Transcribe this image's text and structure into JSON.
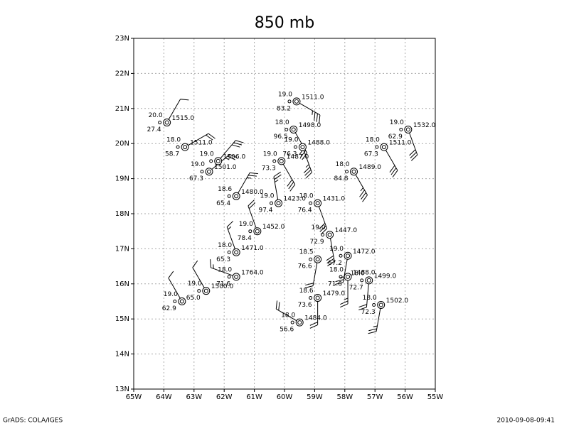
{
  "title": "850 mb",
  "map": {
    "xlim": [
      -65,
      -55
    ],
    "ylim": [
      13,
      23
    ],
    "grid": true,
    "xticks": [
      {
        "value": -65,
        "label": "65W"
      },
      {
        "value": -64,
        "label": "64W"
      },
      {
        "value": -63,
        "label": "63W"
      },
      {
        "value": -62,
        "label": "62W"
      },
      {
        "value": -61,
        "label": "61W"
      },
      {
        "value": -60,
        "label": "60W"
      },
      {
        "value": -59,
        "label": "59W"
      },
      {
        "value": -58,
        "label": "58W"
      },
      {
        "value": -57,
        "label": "57W"
      },
      {
        "value": -56,
        "label": "56W"
      },
      {
        "value": -55,
        "label": "55W"
      }
    ],
    "yticks": [
      {
        "value": 13,
        "label": "13N"
      },
      {
        "value": 14,
        "label": "14N"
      },
      {
        "value": 15,
        "label": "15N"
      },
      {
        "value": 16,
        "label": "16N"
      },
      {
        "value": 17,
        "label": "17N"
      },
      {
        "value": 18,
        "label": "18N"
      },
      {
        "value": 19,
        "label": "19N"
      },
      {
        "value": 20,
        "label": "20N"
      },
      {
        "value": 21,
        "label": "21N"
      },
      {
        "value": 22,
        "label": "22N"
      },
      {
        "value": 23,
        "label": "23N"
      }
    ],
    "stations": [
      {
        "lon": -63.9,
        "lat": 20.6,
        "temp": "20.0",
        "height": "1515.0",
        "rh": "27.4",
        "wind_dir": 30,
        "wind_speed": 10
      },
      {
        "lon": -63.3,
        "lat": 19.9,
        "temp": "18.0",
        "height": "1511.0",
        "rh": "58.7",
        "wind_dir": 60,
        "wind_speed": 20
      },
      {
        "lon": -62.5,
        "lat": 19.2,
        "temp": "19.0",
        "height": "1501.0",
        "rh": "67.3",
        "wind_dir": 50,
        "wind_speed": 25
      },
      {
        "lon": -62.2,
        "lat": 19.5,
        "temp": "19.0",
        "height": "1506.0",
        "rh": "",
        "wind_dir": 40,
        "wind_speed": 30
      },
      {
        "lon": -59.6,
        "lat": 21.2,
        "temp": "19.0",
        "height": "1511.0",
        "rh": "83.2",
        "wind_dir": 120,
        "wind_speed": 35
      },
      {
        "lon": -59.7,
        "lat": 20.4,
        "temp": "18.0",
        "height": "1498.0",
        "rh": "96.5",
        "wind_dir": 150,
        "wind_speed": 30
      },
      {
        "lon": -59.4,
        "lat": 19.9,
        "temp": "19.0",
        "height": "1488.0",
        "rh": "76.3",
        "wind_dir": 160,
        "wind_speed": 35
      },
      {
        "lon": -60.1,
        "lat": 19.5,
        "temp": "19.0",
        "height": "1487.0",
        "rh": "73.3",
        "wind_dir": 150,
        "wind_speed": 30
      },
      {
        "lon": -57.7,
        "lat": 19.2,
        "temp": "18.0",
        "height": "1489.0",
        "rh": "84.8",
        "wind_dir": 150,
        "wind_speed": 35
      },
      {
        "lon": -56.7,
        "lat": 19.9,
        "temp": "18.0",
        "height": "1511.0",
        "rh": "67.3",
        "wind_dir": 150,
        "wind_speed": 30
      },
      {
        "lon": -55.9,
        "lat": 20.4,
        "temp": "19.0",
        "height": "1532.0",
        "rh": "62.9",
        "wind_dir": 160,
        "wind_speed": 30
      },
      {
        "lon": -61.6,
        "lat": 18.5,
        "temp": "18.6",
        "height": "1480.0",
        "rh": "65.4",
        "wind_dir": 30,
        "wind_speed": 25
      },
      {
        "lon": -60.2,
        "lat": 18.3,
        "temp": "19.0",
        "height": "1423.0",
        "rh": "97.4",
        "wind_dir": 350,
        "wind_speed": 25
      },
      {
        "lon": -58.9,
        "lat": 18.3,
        "temp": "18.0",
        "height": "1431.0",
        "rh": "76.4",
        "wind_dir": 160,
        "wind_speed": 30
      },
      {
        "lon": -60.9,
        "lat": 17.5,
        "temp": "19.0",
        "height": "1452.0",
        "rh": "78.4",
        "wind_dir": 340,
        "wind_speed": 20
      },
      {
        "lon": -58.5,
        "lat": 17.4,
        "temp": "19.0",
        "height": "1447.0",
        "rh": "72.9",
        "wind_dir": 170,
        "wind_speed": 30
      },
      {
        "lon": -61.6,
        "lat": 16.9,
        "temp": "18.0",
        "height": "1471.0",
        "rh": "65.3",
        "wind_dir": 340,
        "wind_speed": 15
      },
      {
        "lon": -57.9,
        "lat": 16.8,
        "temp": "19.0",
        "height": "1472.0",
        "rh": "67.2",
        "wind_dir": 190,
        "wind_speed": 25
      },
      {
        "lon": -58.9,
        "lat": 16.7,
        "temp": "18.5",
        "height": "",
        "rh": "76.6",
        "wind_dir": 190,
        "wind_speed": 20
      },
      {
        "lon": -61.6,
        "lat": 16.2,
        "temp": "18.0",
        "height": "1764.0",
        "rh": "71.6",
        "wind_dir": 290,
        "wind_speed": 15
      },
      {
        "lon": -62.6,
        "lat": 15.8,
        "temp": "19.0",
        "height": "1500.0",
        "rh": "65.0",
        "wind_dir": 330,
        "wind_speed": 10
      },
      {
        "lon": -63.4,
        "lat": 15.5,
        "temp": "19.0",
        "height": "",
        "rh": "62.9",
        "wind_dir": 330,
        "wind_speed": 10
      },
      {
        "lon": -57.2,
        "lat": 16.1,
        "temp": "18.0",
        "height": "1499.0",
        "rh": "72.7",
        "wind_dir": 185,
        "wind_speed": 20
      },
      {
        "lon": -57.9,
        "lat": 16.2,
        "temp": "18.0",
        "height": "1488.0",
        "rh": "71.6",
        "wind_dir": 180,
        "wind_speed": 25
      },
      {
        "lon": -58.9,
        "lat": 15.6,
        "temp": "18.6",
        "height": "1479.0",
        "rh": "73.6",
        "wind_dir": 180,
        "wind_speed": 20
      },
      {
        "lon": -56.8,
        "lat": 15.4,
        "temp": "18.0",
        "height": "1502.0",
        "rh": "72.3",
        "wind_dir": 190,
        "wind_speed": 25
      },
      {
        "lon": -59.5,
        "lat": 14.9,
        "temp": "18.0",
        "height": "1484.0",
        "rh": "56.6",
        "wind_dir": 300,
        "wind_speed": 20
      }
    ]
  },
  "footer": {
    "left": "GrADS: COLA/IGES",
    "right": "2010-09-08-09:41"
  }
}
